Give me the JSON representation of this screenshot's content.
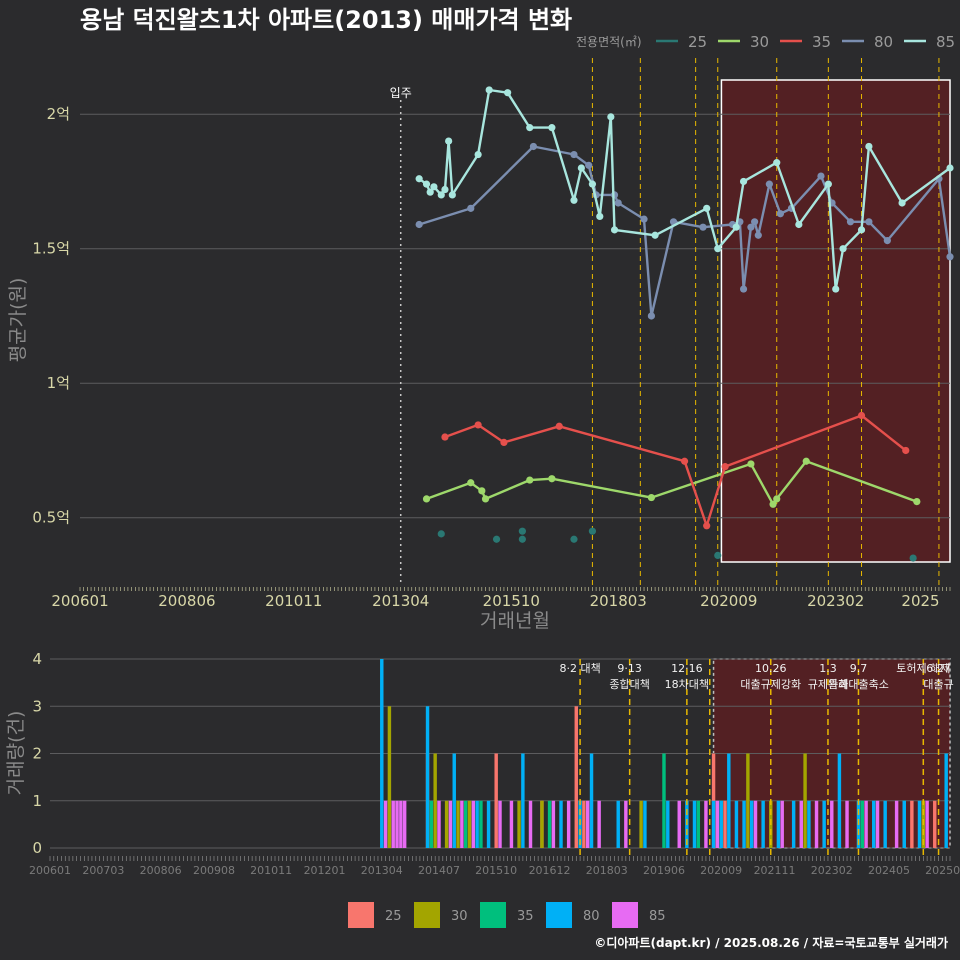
{
  "title": "용남 덕진왈츠1차 아파트(2013) 매매가격 변화",
  "credit": "©디아파트(dapt.kr) / 2025.08.26 / 자료=국토교통부 실거래가",
  "colors": {
    "bg": "#2b2b2d",
    "grid": "#5c5c5e",
    "line25": "#2a7873",
    "line30": "#9ed86b",
    "line35": "#e5504c",
    "line80": "#7b8eb0",
    "line85": "#a8e6de",
    "bar25": "#f8766d",
    "bar30": "#a3a500",
    "bar35": "#00bf7d",
    "bar80": "#00b0f6",
    "bar85": "#e76bf3",
    "highlight": "#5a1e22",
    "policy": "#e8b800"
  },
  "chart_data": [
    {
      "type": "line",
      "title": "용남 덕진왈츠1차 아파트(2013) 매매가격 변화",
      "xlabel": "거래년월",
      "ylabel": "평균가(원)",
      "ylim": [
        0.25,
        2.22
      ],
      "y_ticks": [
        0.5,
        1,
        1.5,
        2
      ],
      "y_tick_labels": [
        "0.5억",
        "1억",
        "1.5억",
        "2억"
      ],
      "x_range": [
        "2006-01",
        "2025-09"
      ],
      "x_ticks": [
        "200601",
        "200806",
        "201011",
        "201304",
        "201510",
        "201803",
        "202009",
        "202302",
        "2025"
      ],
      "legend_title": "전용면적(㎡)",
      "legend_position": "top-right",
      "grid": true,
      "annotation": {
        "x": "2013-04",
        "label": "입주"
      },
      "policy_lines": [
        "2017-08",
        "2018-09",
        "2019-12",
        "2020-06",
        "2021-10",
        "2022-12",
        "2023-09",
        "2025-06"
      ],
      "highlight_range": [
        "2020-07",
        "2025-09"
      ],
      "series": [
        {
          "name": "25",
          "points": [
            [
              "2014-03",
              0.44
            ],
            [
              "2015-06",
              0.42
            ],
            [
              "2016-01",
              0.45
            ],
            [
              "2016-01",
              0.42
            ],
            [
              "2017-03",
              0.42
            ],
            [
              "2017-08",
              0.45
            ],
            [
              "2020-06",
              0.36
            ],
            [
              "2024-11",
              0.35
            ]
          ]
        },
        {
          "name": "30",
          "points": [
            [
              "2013-11",
              0.57
            ],
            [
              "2014-11",
              0.63
            ],
            [
              "2015-02",
              0.6
            ],
            [
              "2015-03",
              0.57
            ],
            [
              "2016-03",
              0.64
            ],
            [
              "2016-09",
              0.645
            ],
            [
              "2018-12",
              0.575
            ],
            [
              "2021-03",
              0.7
            ],
            [
              "2021-09",
              0.55
            ],
            [
              "2021-10",
              0.57
            ],
            [
              "2022-06",
              0.71
            ],
            [
              "2024-12",
              0.56
            ]
          ]
        },
        {
          "name": "35",
          "points": [
            [
              "2014-04",
              0.8
            ],
            [
              "2015-01",
              0.845
            ],
            [
              "2015-08",
              0.78
            ],
            [
              "2016-11",
              0.84
            ],
            [
              "2019-09",
              0.71
            ],
            [
              "2020-03",
              0.47
            ],
            [
              "2020-08",
              0.69
            ],
            [
              "2023-09",
              0.88
            ],
            [
              "2024-09",
              0.75
            ]
          ]
        },
        {
          "name": "80",
          "points": [
            [
              "2013-09",
              1.59
            ],
            [
              "2014-11",
              1.65
            ],
            [
              "2016-04",
              1.88
            ],
            [
              "2017-03",
              1.85
            ],
            [
              "2017-07",
              1.81
            ],
            [
              "2017-09",
              1.7
            ],
            [
              "2018-02",
              1.7
            ],
            [
              "2018-03",
              1.67
            ],
            [
              "2018-10",
              1.61
            ],
            [
              "2018-12",
              1.25
            ],
            [
              "2019-06",
              1.6
            ],
            [
              "2020-02",
              1.58
            ],
            [
              "2020-10",
              1.59
            ],
            [
              "2020-12",
              1.6
            ],
            [
              "2021-01",
              1.35
            ],
            [
              "2021-03",
              1.58
            ],
            [
              "2021-04",
              1.6
            ],
            [
              "2021-05",
              1.55
            ],
            [
              "2021-08",
              1.74
            ],
            [
              "2021-11",
              1.63
            ],
            [
              "2022-02",
              1.65
            ],
            [
              "2022-10",
              1.77
            ],
            [
              "2023-01",
              1.67
            ],
            [
              "2023-06",
              1.6
            ],
            [
              "2023-11",
              1.6
            ],
            [
              "2024-04",
              1.53
            ],
            [
              "2025-06",
              1.76
            ],
            [
              "2025-09",
              1.47
            ]
          ]
        },
        {
          "name": "85",
          "points": [
            [
              "2013-09",
              1.76
            ],
            [
              "2013-11",
              1.74
            ],
            [
              "2013-12",
              1.71
            ],
            [
              "2014-01",
              1.73
            ],
            [
              "2014-03",
              1.7
            ],
            [
              "2014-04",
              1.72
            ],
            [
              "2014-05",
              1.9
            ],
            [
              "2014-06",
              1.7
            ],
            [
              "2015-01",
              1.85
            ],
            [
              "2015-04",
              2.09
            ],
            [
              "2015-09",
              2.08
            ],
            [
              "2016-03",
              1.95
            ],
            [
              "2016-09",
              1.95
            ],
            [
              "2017-03",
              1.68
            ],
            [
              "2017-05",
              1.8
            ],
            [
              "2017-08",
              1.74
            ],
            [
              "2017-10",
              1.62
            ],
            [
              "2018-01",
              1.99
            ],
            [
              "2018-02",
              1.57
            ],
            [
              "2019-01",
              1.55
            ],
            [
              "2020-03",
              1.65
            ],
            [
              "2020-06",
              1.5
            ],
            [
              "2020-11",
              1.58
            ],
            [
              "2021-01",
              1.75
            ],
            [
              "2021-10",
              1.82
            ],
            [
              "2022-04",
              1.59
            ],
            [
              "2022-12",
              1.74
            ],
            [
              "2023-02",
              1.35
            ],
            [
              "2023-04",
              1.5
            ],
            [
              "2023-09",
              1.57
            ],
            [
              "2023-11",
              1.88
            ],
            [
              "2024-08",
              1.67
            ],
            [
              "2025-09",
              1.8
            ]
          ]
        }
      ]
    },
    {
      "type": "bar",
      "ylabel": "거래량(건)",
      "ylim": [
        0,
        4
      ],
      "y_ticks": [
        0,
        1,
        2,
        3,
        4
      ],
      "x_range": [
        "2006-01",
        "2025-09"
      ],
      "x_ticks": [
        "200601",
        "200703",
        "200806",
        "200908",
        "201011",
        "201201",
        "201304",
        "201407",
        "201510",
        "201612",
        "201803",
        "201906",
        "202009",
        "202111",
        "202302",
        "202405",
        "202508"
      ],
      "legend_position": "bottom",
      "highlight_range": [
        "2020-07",
        "2025-09"
      ],
      "policies": [
        {
          "x": "2017-08",
          "lines": [
            "8·2 대책"
          ]
        },
        {
          "x": "2018-09",
          "lines": [
            "9·13",
            "종합대책"
          ]
        },
        {
          "x": "2019-12",
          "lines": [
            "12·16",
            "18차대책"
          ]
        },
        {
          "x": "2020-06",
          "lines": [
            ""
          ]
        },
        {
          "x": "2021-10",
          "lines": [
            "10.26",
            "대출규제강화"
          ]
        },
        {
          "x": "2023-01",
          "lines": [
            "1.3",
            "규제완화"
          ]
        },
        {
          "x": "2023-09",
          "lines": [
            "9.7",
            "특례대출축소"
          ]
        },
        {
          "x": "2025-02",
          "lines": [
            "토허제 해제"
          ]
        },
        {
          "x": "2025-06",
          "lines": [
            "6.27",
            "대출규"
          ]
        }
      ],
      "series": [
        {
          "name": "25",
          "bars": [
            [
              "2014-04",
              2
            ],
            [
              "2015-10",
              2
            ],
            [
              "2016-10",
              1
            ],
            [
              "2017-07",
              3
            ],
            [
              "2017-09",
              1
            ],
            [
              "2020-07",
              2
            ],
            [
              "2020-10",
              1
            ],
            [
              "2024-11",
              1
            ],
            [
              "2025-05",
              1
            ]
          ]
        },
        {
          "name": "30",
          "bars": [
            [
              "2013-06",
              3
            ],
            [
              "2014-06",
              2
            ],
            [
              "2014-09",
              1
            ],
            [
              "2014-12",
              1
            ],
            [
              "2015-03",
              1
            ],
            [
              "2016-04",
              1
            ],
            [
              "2016-10",
              1
            ],
            [
              "2018-12",
              1
            ],
            [
              "2021-04",
              2
            ],
            [
              "2021-10",
              1
            ],
            [
              "2022-07",
              2
            ],
            [
              "2025-02",
              1
            ]
          ]
        },
        {
          "name": "35",
          "bars": [
            [
              "2014-05",
              1
            ],
            [
              "2015-02",
              1
            ],
            [
              "2015-06",
              1
            ],
            [
              "2016-12",
              1
            ],
            [
              "2019-06",
              2
            ],
            [
              "2020-03",
              1
            ],
            [
              "2020-09",
              1
            ],
            [
              "2023-10",
              1
            ],
            [
              "2024-09",
              1
            ]
          ]
        },
        {
          "name": "80",
          "bars": [
            [
              "2013-04",
              4
            ],
            [
              "2014-04",
              3
            ],
            [
              "2014-11",
              2
            ],
            [
              "2015-05",
              1
            ],
            [
              "2015-08",
              1
            ],
            [
              "2016-05",
              2
            ],
            [
              "2017-03",
              1
            ],
            [
              "2017-08",
              1
            ],
            [
              "2017-11",
              2
            ],
            [
              "2018-06",
              1
            ],
            [
              "2019-01",
              1
            ],
            [
              "2019-07",
              1
            ],
            [
              "2019-12",
              1
            ],
            [
              "2020-02",
              1
            ],
            [
              "2020-07",
              1
            ],
            [
              "2020-09",
              1
            ],
            [
              "2020-11",
              2
            ],
            [
              "2021-01",
              1
            ],
            [
              "2021-03",
              1
            ],
            [
              "2021-05",
              1
            ],
            [
              "2021-08",
              1
            ],
            [
              "2021-12",
              1
            ],
            [
              "2022-04",
              1
            ],
            [
              "2022-08",
              1
            ],
            [
              "2022-12",
              1
            ],
            [
              "2023-04",
              2
            ],
            [
              "2023-09",
              1
            ],
            [
              "2024-01",
              1
            ],
            [
              "2024-04",
              1
            ],
            [
              "2024-09",
              1
            ],
            [
              "2025-01",
              1
            ],
            [
              "2025-08",
              2
            ]
          ]
        },
        {
          "name": "85",
          "bars": [
            [
              "2013-05",
              1
            ],
            [
              "2013-07",
              1
            ],
            [
              "2013-08",
              1
            ],
            [
              "2013-09",
              1
            ],
            [
              "2013-10",
              1
            ],
            [
              "2014-07",
              1
            ],
            [
              "2014-10",
              1
            ],
            [
              "2015-01",
              1
            ],
            [
              "2015-04",
              1
            ],
            [
              "2015-11",
              1
            ],
            [
              "2016-02",
              1
            ],
            [
              "2016-07",
              1
            ],
            [
              "2017-01",
              1
            ],
            [
              "2017-05",
              1
            ],
            [
              "2017-10",
              1
            ],
            [
              "2018-01",
              1
            ],
            [
              "2018-08",
              1
            ],
            [
              "2019-10",
              1
            ],
            [
              "2020-05",
              1
            ],
            [
              "2020-08",
              1
            ],
            [
              "2021-06",
              1
            ],
            [
              "2022-01",
              1
            ],
            [
              "2022-06",
              1
            ],
            [
              "2022-10",
              1
            ],
            [
              "2023-02",
              1
            ],
            [
              "2023-06",
              1
            ],
            [
              "2023-11",
              1
            ],
            [
              "2024-02",
              1
            ],
            [
              "2024-07",
              1
            ],
            [
              "2025-03",
              1
            ]
          ]
        }
      ]
    }
  ]
}
